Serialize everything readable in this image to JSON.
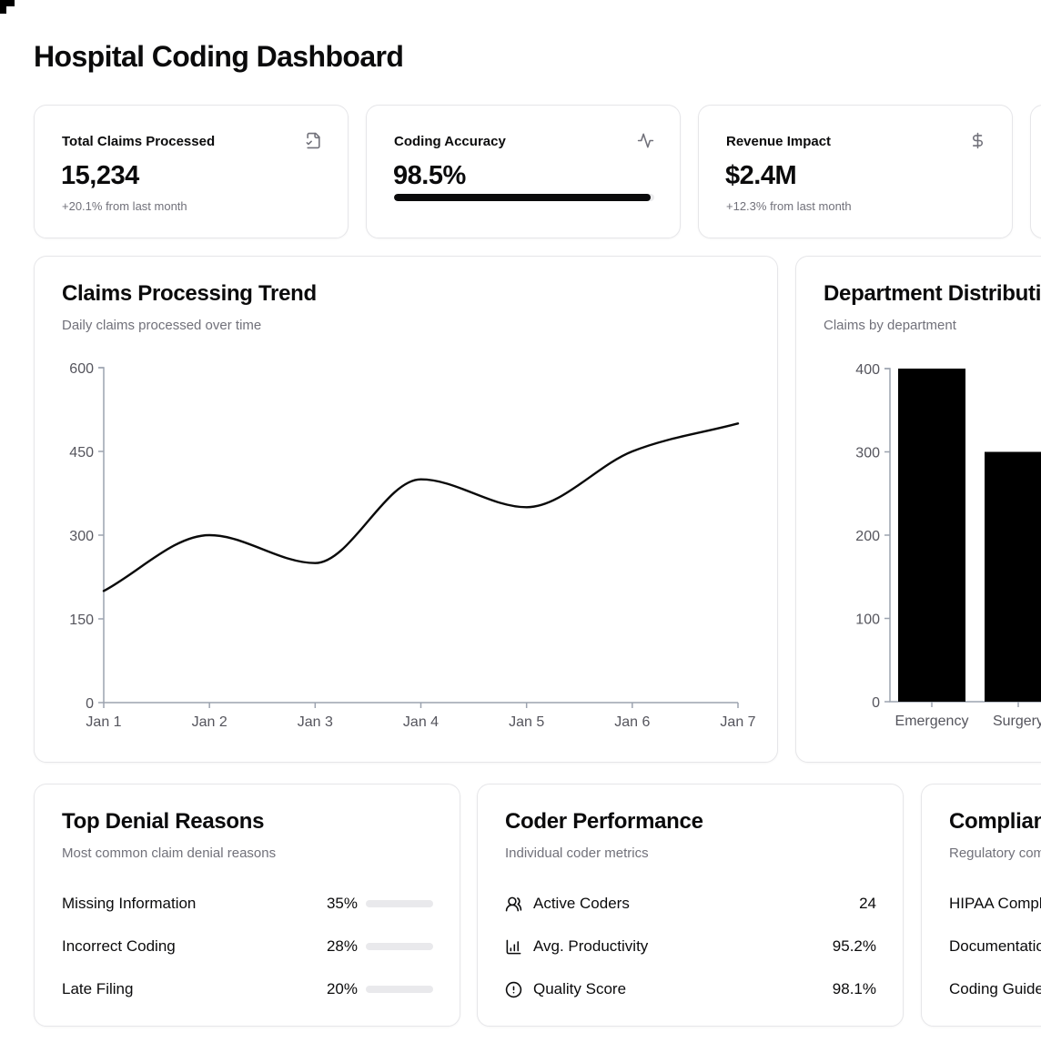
{
  "page": {
    "title": "Hospital Coding Dashboard"
  },
  "colors": {
    "foreground": "#0b0b0c",
    "muted_text": "#71717a",
    "card_border": "#e6e6e9",
    "axis": "#9ca3af",
    "chart_ink": "#000000",
    "progress_track": "#ececee"
  },
  "stats": [
    {
      "label": "Total Claims Processed",
      "icon": "file-check-icon",
      "value": "15,234",
      "change": "+20.1% from last month"
    },
    {
      "label": "Coding Accuracy",
      "icon": "activity-icon",
      "value": "98.5%",
      "progress_pct": 98.5
    },
    {
      "label": "Revenue Impact",
      "icon": "dollar-icon",
      "value": "$2.4M",
      "change": "+12.3% from last month"
    }
  ],
  "charts": {
    "claims_trend": {
      "title": "Claims Processing Trend",
      "subtitle": "Daily claims processed over time"
    },
    "department": {
      "title": "Department Distribution",
      "subtitle": "Claims by department"
    }
  },
  "chart_data": [
    {
      "type": "line",
      "title": "Claims Processing Trend",
      "subtitle": "Daily claims processed over time",
      "x": [
        "Jan 1",
        "Jan 2",
        "Jan 3",
        "Jan 4",
        "Jan 5",
        "Jan 6",
        "Jan 7"
      ],
      "series": [
        {
          "name": "Daily claims",
          "values": [
            200,
            300,
            250,
            400,
            350,
            450,
            500
          ]
        }
      ],
      "ylim": [
        0,
        600
      ],
      "yticks": [
        0,
        150,
        300,
        450,
        600
      ],
      "grid": false,
      "legend": false,
      "curve": "monotone",
      "line_color": "#0a0a0a"
    },
    {
      "type": "bar",
      "title": "Department Distribution",
      "subtitle": "Claims by department",
      "categories": [
        "Emergency",
        "Surgery"
      ],
      "values": [
        400,
        300
      ],
      "ylim": [
        0,
        400
      ],
      "yticks": [
        0,
        100,
        200,
        300,
        400
      ],
      "grid": false,
      "legend": false,
      "bar_color": "#000000",
      "note": "chart continues beyond right edge of viewport"
    }
  ],
  "denials": {
    "title": "Top Denial Reasons",
    "subtitle": "Most common claim denial reasons",
    "rows": [
      {
        "label": "Missing Information",
        "pct": "35%",
        "value": 35
      },
      {
        "label": "Incorrect Coding",
        "pct": "28%",
        "value": 28
      },
      {
        "label": "Late Filing",
        "pct": "20%",
        "value": 20
      }
    ]
  },
  "coders": {
    "title": "Coder Performance",
    "subtitle": "Individual coder metrics",
    "rows": [
      {
        "icon": "users-icon",
        "label": "Active Coders",
        "value": "24"
      },
      {
        "icon": "bar-chart-icon",
        "label": "Avg. Productivity",
        "value": "95.2%"
      },
      {
        "icon": "alert-circle-icon",
        "label": "Quality Score",
        "value": "98.1%"
      }
    ]
  },
  "compliance": {
    "title": "Compliance Status",
    "subtitle": "Regulatory compliance status",
    "rows": [
      {
        "label": "HIPAA Compliance"
      },
      {
        "label": "Documentation"
      },
      {
        "label": "Coding Guidelines"
      }
    ]
  }
}
